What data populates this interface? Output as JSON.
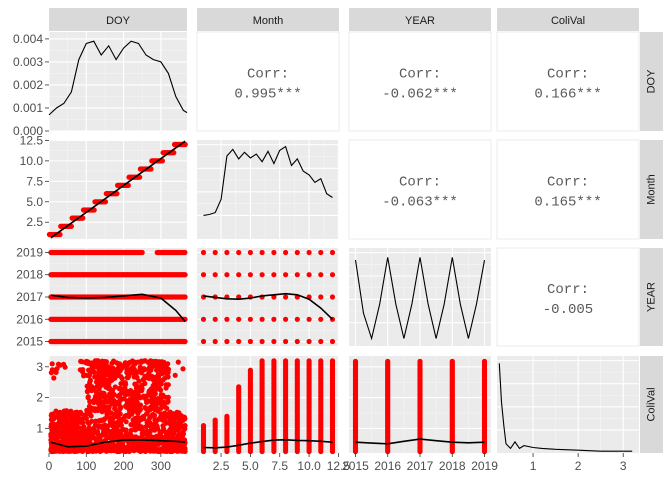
{
  "chart_data": {
    "type": "pairs",
    "variables": [
      "DOY",
      "Month",
      "YEAR",
      "ColiVal"
    ],
    "point_color": "#ff0000",
    "line_color": "#000000",
    "axes": {
      "DOY": {
        "range": [
          0,
          370
        ],
        "ticks": [
          0,
          100,
          200,
          300
        ],
        "tick_labels": [
          "0",
          "100",
          "200",
          "300"
        ]
      },
      "Month": {
        "range": [
          0.45,
          12.55
        ],
        "ticks": [
          2.5,
          5.0,
          7.5,
          10.0,
          12.5
        ],
        "tick_labels": [
          "2.5",
          "5.0",
          "7.5",
          "10.0",
          "12.5"
        ]
      },
      "YEAR": {
        "range": [
          2014.8,
          2019.2
        ],
        "ticks": [
          2015,
          2016,
          2017,
          2018,
          2019
        ],
        "tick_labels": [
          "2015",
          "2016",
          "2017",
          "2018",
          "2019"
        ]
      },
      "ColiVal": {
        "range": [
          0.2,
          3.35
        ],
        "ticks": [
          1,
          2,
          3
        ],
        "tick_labels": [
          "1",
          "2",
          "3"
        ]
      }
    },
    "density_axis_DOY": {
      "range": [
        0,
        0.0043
      ],
      "ticks": [
        0,
        0.001,
        0.002,
        0.003,
        0.004
      ],
      "tick_labels": [
        "0.000",
        "0.001",
        "0.002",
        "0.003",
        "0.004"
      ]
    },
    "x_axis_tick_labels": {
      "Month": [
        "2.5",
        "5.0",
        "7.5",
        "10.0",
        "12.5"
      ]
    },
    "correlations": [
      {
        "x": "Month",
        "y": "DOY",
        "label": "Corr:",
        "value": "0.995***"
      },
      {
        "x": "YEAR",
        "y": "DOY",
        "label": "Corr:",
        "value": "-0.062***"
      },
      {
        "x": "ColiVal",
        "y": "DOY",
        "label": "Corr:",
        "value": "0.166***"
      },
      {
        "x": "YEAR",
        "y": "Month",
        "label": "Corr:",
        "value": "-0.063***"
      },
      {
        "x": "ColiVal",
        "y": "Month",
        "label": "Corr:",
        "value": "0.165***"
      },
      {
        "x": "ColiVal",
        "y": "YEAR",
        "label": "Corr:",
        "value": "-0.005"
      }
    ],
    "densities": {
      "DOY": {
        "x": [
          0,
          20,
          40,
          60,
          80,
          100,
          120,
          140,
          160,
          180,
          200,
          220,
          240,
          260,
          280,
          300,
          320,
          340,
          360,
          370
        ],
        "y": [
          0.0007,
          0.001,
          0.0012,
          0.0017,
          0.0031,
          0.0038,
          0.0039,
          0.0033,
          0.0037,
          0.0031,
          0.0036,
          0.0039,
          0.0038,
          0.0033,
          0.0031,
          0.003,
          0.0025,
          0.0015,
          0.0009,
          0.0008
        ]
      },
      "Month": {
        "x": [
          1,
          1.5,
          2,
          2.5,
          3,
          3.5,
          4,
          4.5,
          5,
          5.5,
          6,
          6.5,
          7,
          7.5,
          8,
          8.5,
          9,
          9.5,
          10,
          10.5,
          11,
          11.5,
          12
        ],
        "y": [
          0.25,
          0.26,
          0.28,
          0.42,
          0.88,
          0.95,
          0.85,
          0.92,
          0.86,
          0.9,
          0.82,
          0.93,
          0.8,
          0.94,
          0.98,
          0.78,
          0.85,
          0.72,
          0.68,
          0.6,
          0.64,
          0.48,
          0.44
        ]
      },
      "YEAR": {
        "x": [
          2015,
          2015.25,
          2015.5,
          2015.75,
          2016,
          2016.25,
          2016.5,
          2016.75,
          2017,
          2017.25,
          2017.5,
          2017.75,
          2018,
          2018.25,
          2018.5,
          2018.75,
          2019
        ],
        "y": [
          0.92,
          0.35,
          0.08,
          0.45,
          0.95,
          0.45,
          0.08,
          0.45,
          0.95,
          0.45,
          0.08,
          0.45,
          0.95,
          0.45,
          0.08,
          0.45,
          0.92
        ]
      },
      "ColiVal": {
        "x": [
          0.25,
          0.3,
          0.35,
          0.4,
          0.5,
          0.6,
          0.7,
          0.8,
          1.0,
          1.2,
          1.5,
          2.0,
          2.5,
          3.0,
          3.2
        ],
        "y": [
          0.97,
          0.55,
          0.3,
          0.1,
          0.05,
          0.12,
          0.05,
          0.08,
          0.06,
          0.05,
          0.04,
          0.03,
          0.02,
          0.02,
          0.02
        ]
      }
    },
    "scatter_trends": {
      "Month~DOY": {
        "x": [
          5,
          365
        ],
        "y": [
          0.6,
          12.4
        ]
      },
      "YEAR~DOY": {
        "x": [
          5,
          50,
          100,
          150,
          200,
          250,
          300,
          340,
          365
        ],
        "y": [
          2017.08,
          2016.98,
          2016.95,
          2016.98,
          2017.05,
          2017.12,
          2016.95,
          2016.4,
          2015.9
        ]
      },
      "YEAR~Month": {
        "x": [
          1,
          2,
          3,
          4,
          5,
          6,
          7,
          8,
          9,
          10,
          11,
          12
        ],
        "y": [
          2017.05,
          2016.98,
          2016.92,
          2016.9,
          2016.95,
          2017.05,
          2017.1,
          2017.15,
          2017.1,
          2016.9,
          2016.5,
          2016.0
        ]
      },
      "ColiVal~DOY": {
        "x": [
          5,
          50,
          100,
          150,
          200,
          250,
          300,
          340,
          365
        ],
        "y": [
          0.55,
          0.4,
          0.42,
          0.55,
          0.62,
          0.62,
          0.6,
          0.58,
          0.55
        ]
      },
      "ColiVal~Month": {
        "x": [
          1,
          2,
          3,
          4,
          5,
          6,
          7,
          8,
          9,
          10,
          11,
          12
        ],
        "y": [
          0.38,
          0.37,
          0.39,
          0.45,
          0.52,
          0.57,
          0.62,
          0.63,
          0.61,
          0.6,
          0.58,
          0.55
        ]
      },
      "ColiVal~YEAR": {
        "x": [
          2015,
          2015.5,
          2016,
          2016.5,
          2017,
          2017.5,
          2018,
          2018.5,
          2019
        ],
        "y": [
          0.55,
          0.52,
          0.5,
          0.58,
          0.65,
          0.6,
          0.55,
          0.53,
          0.55
        ]
      }
    }
  }
}
